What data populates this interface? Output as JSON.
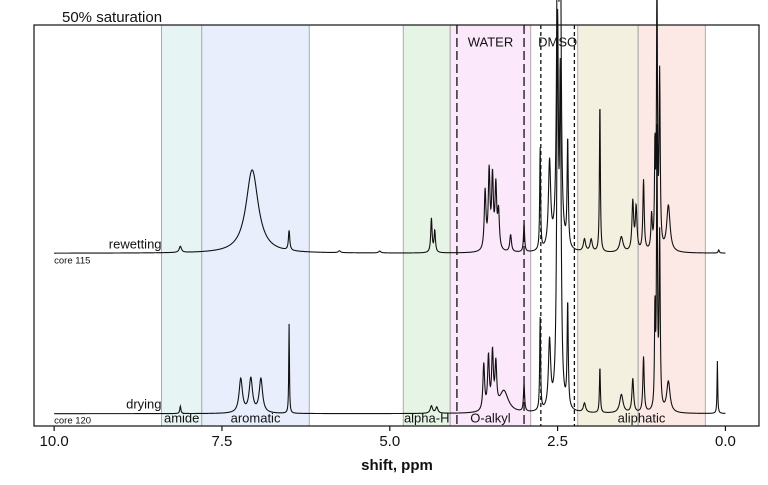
{
  "chart_data": {
    "type": "line",
    "title": "50% saturation",
    "xlabel": "shift, ppm",
    "ylabel": "",
    "xlim": [
      10.3,
      -0.5
    ],
    "x_reversed": true,
    "ylim": [
      -0.2,
      6.3
    ],
    "grid": false,
    "xticks": [
      10.0,
      7.5,
      5.0,
      2.5,
      0.0
    ],
    "xtick_labels": [
      "10.0",
      "7.5",
      "5.0",
      "2.5",
      "0.0"
    ],
    "regions": [
      {
        "name": "amide",
        "from": 8.4,
        "to": 7.8,
        "color": "#e6f5f3"
      },
      {
        "name": "aromatic",
        "from": 7.8,
        "to": 6.2,
        "color": "#e8eefc"
      },
      {
        "name": "alpha-H",
        "from": 4.8,
        "to": 4.1,
        "color": "#e6f4e6"
      },
      {
        "name": "O-alkyl",
        "from": 4.1,
        "to": 2.9,
        "color": "#fbe8fb"
      },
      {
        "name": "aliphatic",
        "from": 2.2,
        "to": 0.3,
        "color": "#f3f0e0",
        "extra_from": 1.3,
        "extra_to": 0.3,
        "extra_color": "#fce9e5"
      }
    ],
    "solvent_regions": [
      {
        "name": "WATER",
        "from": 4.0,
        "to": 3.0,
        "style": "long-dash"
      },
      {
        "name": "DMSO",
        "from": 2.75,
        "to": 2.25,
        "style": "short-dash"
      }
    ],
    "series": [
      {
        "name": "rewetting",
        "sample": "core 115",
        "baseline": 2.6,
        "x_start": 10.0,
        "x_end": 0.0,
        "peaks": [
          [
            8.12,
            0.1,
            0.02
          ],
          [
            7.05,
            1.35,
            0.11
          ],
          [
            6.5,
            0.32,
            0.012
          ],
          [
            5.75,
            0.03,
            0.02
          ],
          [
            5.15,
            0.03,
            0.02
          ],
          [
            4.38,
            0.55,
            0.012
          ],
          [
            4.33,
            0.35,
            0.012
          ],
          [
            3.58,
            0.95,
            0.015
          ],
          [
            3.52,
            1.25,
            0.015
          ],
          [
            3.47,
            1.15,
            0.015
          ],
          [
            3.42,
            1.0,
            0.015
          ],
          [
            3.38,
            0.6,
            0.015
          ],
          [
            3.2,
            0.28,
            0.015
          ],
          [
            3.0,
            0.45,
            0.01
          ],
          [
            2.76,
            1.65,
            0.008
          ],
          [
            2.62,
            1.4,
            0.02
          ],
          [
            2.5,
            6.0,
            0.015
          ],
          [
            2.46,
            5.2,
            0.015
          ],
          [
            2.35,
            1.75,
            0.01
          ],
          [
            2.1,
            0.2,
            0.02
          ],
          [
            2.0,
            0.2,
            0.02
          ],
          [
            1.87,
            2.45,
            0.008
          ],
          [
            1.55,
            0.25,
            0.03
          ],
          [
            1.38,
            0.8,
            0.015
          ],
          [
            1.33,
            0.7,
            0.015
          ],
          [
            1.22,
            1.15,
            0.012
          ],
          [
            1.1,
            0.55,
            0.012
          ],
          [
            1.05,
            1.6,
            0.008
          ],
          [
            1.02,
            4.4,
            0.008
          ],
          [
            0.98,
            2.8,
            0.01
          ],
          [
            0.85,
            0.75,
            0.03
          ],
          [
            0.1,
            0.05,
            0.01
          ]
        ]
      },
      {
        "name": "drying",
        "sample": "core 120",
        "baseline": 0.0,
        "x_start": 10.0,
        "x_end": 0.0,
        "peaks": [
          [
            8.12,
            0.12,
            0.01
          ],
          [
            7.22,
            0.55,
            0.03
          ],
          [
            7.07,
            0.55,
            0.03
          ],
          [
            6.92,
            0.55,
            0.03
          ],
          [
            6.5,
            1.45,
            0.006
          ],
          [
            4.38,
            0.12,
            0.02
          ],
          [
            4.3,
            0.1,
            0.02
          ],
          [
            3.6,
            0.75,
            0.015
          ],
          [
            3.53,
            0.85,
            0.015
          ],
          [
            3.47,
            0.9,
            0.015
          ],
          [
            3.42,
            0.7,
            0.015
          ],
          [
            3.3,
            0.35,
            0.08
          ],
          [
            3.0,
            0.45,
            0.01
          ],
          [
            2.76,
            1.5,
            0.008
          ],
          [
            2.62,
            1.1,
            0.02
          ],
          [
            2.5,
            5.9,
            0.015
          ],
          [
            2.46,
            5.0,
            0.015
          ],
          [
            2.35,
            1.7,
            0.01
          ],
          [
            2.1,
            0.15,
            0.02
          ],
          [
            1.87,
            0.75,
            0.008
          ],
          [
            1.55,
            0.3,
            0.03
          ],
          [
            1.38,
            0.55,
            0.015
          ],
          [
            1.22,
            0.9,
            0.012
          ],
          [
            1.05,
            1.6,
            0.008
          ],
          [
            1.02,
            4.4,
            0.008
          ],
          [
            0.98,
            2.8,
            0.01
          ],
          [
            0.85,
            0.5,
            0.03
          ],
          [
            0.12,
            0.85,
            0.006
          ]
        ]
      }
    ]
  }
}
